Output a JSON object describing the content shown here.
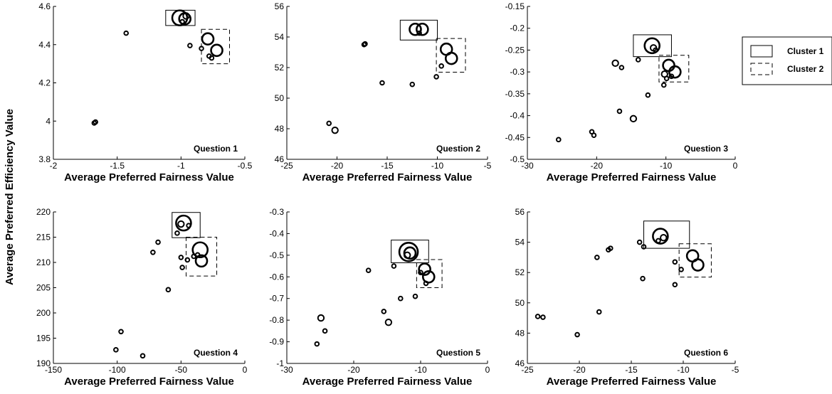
{
  "ylabel": "Average Preferred Efficiency Value",
  "legend": {
    "entries": [
      {
        "label": "Cluster 1",
        "style": "solid"
      },
      {
        "label": "Cluster 2",
        "style": "dashed"
      }
    ]
  },
  "chart_data": [
    {
      "type": "scatter",
      "annotation": "Question 1",
      "xlabel": "Average Preferred Fairness Value",
      "xlim": [
        -2,
        -0.5
      ],
      "ylim": [
        3.8,
        4.6
      ],
      "xticks": [
        "-2",
        "-1.5",
        "-1",
        "-0.5"
      ],
      "yticks": [
        "3.8",
        "4",
        "4.2",
        "4.4",
        "4.6"
      ],
      "points": [
        [
          -1.68,
          3.99,
          1
        ],
        [
          -1.67,
          3.995,
          1
        ],
        [
          -1.43,
          4.46,
          1
        ],
        [
          -0.93,
          4.395,
          1
        ],
        [
          -0.84,
          4.38,
          1
        ],
        [
          -1.01,
          4.54,
          4
        ],
        [
          -0.97,
          4.535,
          3
        ],
        [
          -0.99,
          4.52,
          1
        ],
        [
          -0.96,
          4.55,
          2
        ],
        [
          -0.79,
          4.43,
          3
        ],
        [
          -0.72,
          4.37,
          3
        ],
        [
          -0.78,
          4.34,
          1
        ],
        [
          -0.76,
          4.33,
          1
        ]
      ],
      "clusters": [
        {
          "style": "solid",
          "x": [
            -1.12,
            -0.89
          ],
          "y": [
            4.5,
            4.58
          ]
        },
        {
          "style": "dashed",
          "x": [
            -0.84,
            -0.62
          ],
          "y": [
            4.3,
            4.48
          ]
        }
      ]
    },
    {
      "type": "scatter",
      "annotation": "Question 2",
      "xlabel": "Average Preferred Fairness Value",
      "xlim": [
        -25,
        -5
      ],
      "ylim": [
        46,
        56
      ],
      "xticks": [
        "-25",
        "-20",
        "-15",
        "-10",
        "-5"
      ],
      "yticks": [
        "46",
        "48",
        "50",
        "52",
        "54",
        "56"
      ],
      "points": [
        [
          -20.8,
          48.35,
          1
        ],
        [
          -20.2,
          47.9,
          2
        ],
        [
          -17.3,
          53.5,
          1
        ],
        [
          -17.2,
          53.55,
          1
        ],
        [
          -15.5,
          51.0,
          1
        ],
        [
          -12.5,
          50.9,
          1
        ],
        [
          -10.1,
          51.4,
          1
        ],
        [
          -9.6,
          52.1,
          1
        ],
        [
          -12.2,
          54.5,
          3
        ],
        [
          -11.5,
          54.5,
          3
        ],
        [
          -11.8,
          54.25,
          1
        ],
        [
          -9.1,
          53.2,
          3
        ],
        [
          -8.6,
          52.6,
          3
        ]
      ],
      "clusters": [
        {
          "style": "solid",
          "x": [
            -13.7,
            -10.0
          ],
          "y": [
            53.8,
            55.1
          ]
        },
        {
          "style": "dashed",
          "x": [
            -10.1,
            -7.2
          ],
          "y": [
            51.7,
            53.9
          ]
        }
      ]
    },
    {
      "type": "scatter",
      "annotation": "Question 3",
      "xlabel": "Average Preferred Fairness Value",
      "xlim": [
        -30,
        0
      ],
      "ylim": [
        -0.5,
        -0.15
      ],
      "xticks": [
        "-30",
        "-20",
        "-10",
        "0"
      ],
      "yticks": [
        "-0.5",
        "-0.45",
        "-0.4",
        "-0.35",
        "-0.3",
        "-0.25",
        "-0.2",
        "-0.15"
      ],
      "points": [
        [
          -25.5,
          -0.455,
          1
        ],
        [
          -20.7,
          -0.437,
          1
        ],
        [
          -20.4,
          -0.445,
          1
        ],
        [
          -16.7,
          -0.39,
          1
        ],
        [
          -14.7,
          -0.407,
          2
        ],
        [
          -17.3,
          -0.28,
          2
        ],
        [
          -16.4,
          -0.29,
          1
        ],
        [
          -12.6,
          -0.353,
          1
        ],
        [
          -14.0,
          -0.272,
          1
        ],
        [
          -12.0,
          -0.24,
          4
        ],
        [
          -11.8,
          -0.245,
          2
        ],
        [
          -11.5,
          -0.25,
          1
        ],
        [
          -10.3,
          -0.33,
          1
        ],
        [
          -9.6,
          -0.285,
          3
        ],
        [
          -8.7,
          -0.3,
          3
        ],
        [
          -10.2,
          -0.305,
          2
        ],
        [
          -9.9,
          -0.315,
          1
        ],
        [
          -9.2,
          -0.31,
          1
        ]
      ],
      "clusters": [
        {
          "style": "solid",
          "x": [
            -14.7,
            -9.2
          ],
          "y": [
            -0.265,
            -0.215
          ]
        },
        {
          "style": "dashed",
          "x": [
            -11.0,
            -6.7
          ],
          "y": [
            -0.323,
            -0.262
          ]
        }
      ]
    },
    {
      "type": "scatter",
      "annotation": "Question 4",
      "xlabel": "Average Preferred Fairness Value",
      "xlim": [
        -150,
        0
      ],
      "ylim": [
        190,
        220
      ],
      "xticks": [
        "-150",
        "-100",
        "-50",
        "0"
      ],
      "yticks": [
        "190",
        "195",
        "200",
        "205",
        "210",
        "215",
        "220"
      ],
      "points": [
        [
          -101,
          192.7,
          1
        ],
        [
          -97,
          196.3,
          1
        ],
        [
          -80,
          191.5,
          1
        ],
        [
          -72,
          212.0,
          1
        ],
        [
          -68,
          214.0,
          1
        ],
        [
          -60,
          204.6,
          1
        ],
        [
          -53,
          215.8,
          1
        ],
        [
          -49,
          209.0,
          1
        ],
        [
          -50,
          211.0,
          1
        ],
        [
          -45,
          210.5,
          1
        ],
        [
          -48,
          217.8,
          4
        ],
        [
          -50,
          217.6,
          2
        ],
        [
          -44,
          217.3,
          1
        ],
        [
          -35,
          212.5,
          4
        ],
        [
          -34,
          210.3,
          3
        ],
        [
          -40,
          211.2,
          1
        ],
        [
          -37,
          211.5,
          1
        ]
      ],
      "clusters": [
        {
          "style": "solid",
          "x": [
            -57,
            -35
          ],
          "y": [
            214.9,
            219.9
          ]
        },
        {
          "style": "dashed",
          "x": [
            -46,
            -22
          ],
          "y": [
            207.3,
            215.0
          ]
        }
      ]
    },
    {
      "type": "scatter",
      "annotation": "Question 5",
      "xlabel": "Average Preferred Fairness Value",
      "xlim": [
        -30,
        0
      ],
      "ylim": [
        -1,
        -0.3
      ],
      "xticks": [
        "-30",
        "-20",
        "-10",
        "0"
      ],
      "yticks": [
        "-1",
        "-0.9",
        "-0.8",
        "-0.7",
        "-0.6",
        "-0.5",
        "-0.4",
        "-0.3"
      ],
      "points": [
        [
          -25.5,
          -0.91,
          1
        ],
        [
          -24.9,
          -0.79,
          2
        ],
        [
          -24.3,
          -0.85,
          1
        ],
        [
          -17.8,
          -0.57,
          1
        ],
        [
          -15.5,
          -0.76,
          1
        ],
        [
          -14.8,
          -0.81,
          2
        ],
        [
          -13.0,
          -0.7,
          1
        ],
        [
          -10.8,
          -0.69,
          1
        ],
        [
          -14.0,
          -0.55,
          1
        ],
        [
          -11.8,
          -0.485,
          5
        ],
        [
          -11.6,
          -0.49,
          3
        ],
        [
          -12.0,
          -0.5,
          2
        ],
        [
          -9.4,
          -0.565,
          3
        ],
        [
          -8.8,
          -0.6,
          3
        ],
        [
          -9.2,
          -0.63,
          1
        ],
        [
          -10.0,
          -0.58,
          1
        ]
      ],
      "clusters": [
        {
          "style": "solid",
          "x": [
            -14.4,
            -8.8
          ],
          "y": [
            -0.535,
            -0.43
          ]
        },
        {
          "style": "dashed",
          "x": [
            -10.6,
            -6.8
          ],
          "y": [
            -0.65,
            -0.52
          ]
        }
      ]
    },
    {
      "type": "scatter",
      "annotation": "Question 6",
      "xlabel": "Average Preferred Fairness Value",
      "xlim": [
        -25,
        -5
      ],
      "ylim": [
        46,
        56
      ],
      "xticks": [
        "-25",
        "-20",
        "-15",
        "-10",
        "-5"
      ],
      "yticks": [
        "46",
        "48",
        "50",
        "52",
        "54",
        "56"
      ],
      "points": [
        [
          -24.0,
          49.1,
          1
        ],
        [
          -23.5,
          49.05,
          1
        ],
        [
          -20.2,
          47.9,
          1
        ],
        [
          -18.3,
          53.0,
          1
        ],
        [
          -18.1,
          49.4,
          1
        ],
        [
          -17.2,
          53.5,
          1
        ],
        [
          -17.0,
          53.6,
          1
        ],
        [
          -14.2,
          54.0,
          1
        ],
        [
          -13.8,
          53.7,
          1
        ],
        [
          -13.9,
          51.6,
          1
        ],
        [
          -10.8,
          51.2,
          1
        ],
        [
          -10.8,
          52.7,
          1
        ],
        [
          -10.2,
          52.2,
          1
        ],
        [
          -12.2,
          54.4,
          4
        ],
        [
          -11.9,
          54.3,
          2
        ],
        [
          -12.4,
          54.1,
          1
        ],
        [
          -9.1,
          53.1,
          3
        ],
        [
          -8.6,
          52.5,
          3
        ]
      ],
      "clusters": [
        {
          "style": "solid",
          "x": [
            -13.8,
            -9.4
          ],
          "y": [
            53.6,
            55.4
          ]
        },
        {
          "style": "dashed",
          "x": [
            -10.4,
            -7.3
          ],
          "y": [
            51.7,
            53.9
          ]
        }
      ]
    }
  ]
}
